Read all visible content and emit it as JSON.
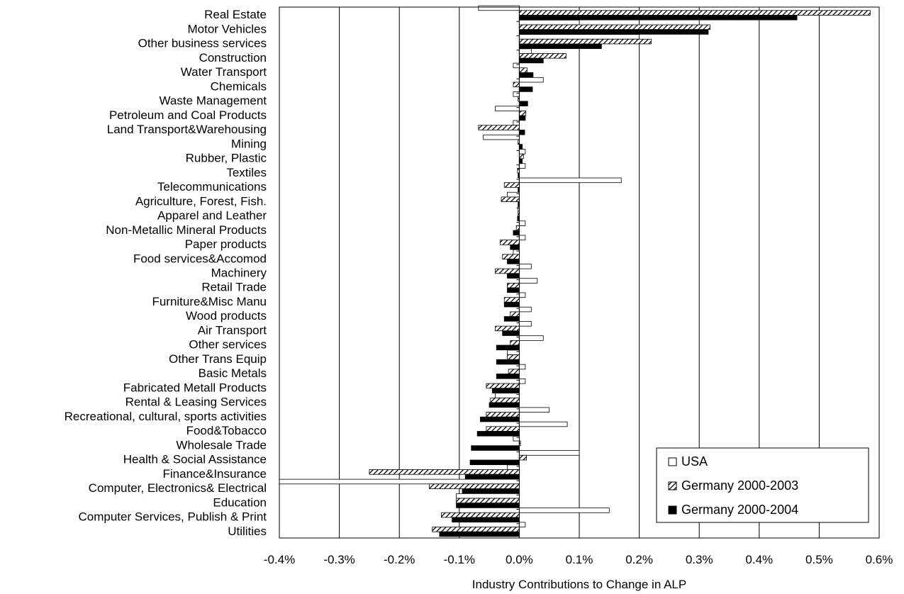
{
  "chart_data": {
    "type": "bar",
    "orientation": "horizontal",
    "title": "",
    "xlabel": "Industry Contributions to Change in ALP",
    "ylabel": "",
    "xlim": [
      -0.4,
      0.6
    ],
    "x_ticks": [
      "-0.4%",
      "-0.3%",
      "-0.2%",
      "-0.1%",
      "0.0%",
      "0.1%",
      "0.2%",
      "0.3%",
      "0.4%",
      "0.5%",
      "0.6%"
    ],
    "x_tick_values": [
      -0.4,
      -0.3,
      -0.2,
      -0.1,
      0.0,
      0.1,
      0.2,
      0.3,
      0.4,
      0.5,
      0.6
    ],
    "unit": "%",
    "grid": "vertical",
    "legend_position": "bottom-right",
    "categories": [
      "Real Estate",
      "Motor Vehicles",
      "Other business services",
      "Construction",
      "Water Transport",
      "Chemicals",
      "Waste Management",
      "Petroleum and Coal Products",
      "Land Transport&Warehousing",
      "Mining",
      "Rubber, Plastic",
      "Textiles",
      "Telecommunications",
      "Agriculture, Forest, Fish.",
      "Apparel and Leather",
      "Non-Metallic Mineral Products",
      "Paper products",
      "Food services&Accomod",
      "Machinery",
      "Retail Trade",
      "Furniture&Misc Manu",
      "Wood products",
      "Air Transport",
      "Other services",
      "Other Trans Equip",
      "Basic Metals",
      "Fabricated Metall Products",
      "Rental & Leasing Services",
      "Recreational, cultural, sports activities",
      "Food&Tobacco",
      "Wholesale Trade",
      "Health & Social Assistance",
      "Finance&Insurance",
      "Computer, Electronics& Electrical",
      "Education",
      "Computer Services, Publish & Print",
      "Utilities"
    ],
    "series": [
      {
        "name": "USA",
        "fill": "white",
        "values": [
          -0.068,
          0.1,
          0.2,
          0.02,
          -0.01,
          0.04,
          -0.01,
          -0.04,
          -0.01,
          -0.06,
          0.01,
          0.01,
          0.17,
          -0.02,
          -0.002,
          0.01,
          0.01,
          -0.01,
          0.02,
          0.03,
          0.01,
          0.02,
          0.02,
          0.04,
          -0.02,
          0.01,
          0.01,
          -0.04,
          0.05,
          0.08,
          -0.01,
          0.1,
          -0.02,
          -0.4,
          -0.105,
          0.15,
          0.01
        ]
      },
      {
        "name": "Germany 2000-2003",
        "fill": "hatch",
        "values": [
          0.585,
          0.318,
          0.22,
          0.078,
          0.013,
          -0.01,
          -0.002,
          0.011,
          -0.068,
          -0.002,
          0.007,
          -0.003,
          -0.025,
          -0.03,
          -0.002,
          -0.005,
          -0.032,
          -0.028,
          -0.04,
          -0.02,
          -0.025,
          -0.015,
          -0.04,
          -0.015,
          -0.02,
          -0.018,
          -0.055,
          -0.048,
          -0.055,
          -0.055,
          0.002,
          0.012,
          -0.25,
          -0.15,
          -0.105,
          -0.13,
          -0.145
        ]
      },
      {
        "name": "Germany 2000-2004",
        "fill": "black",
        "values": [
          0.463,
          0.315,
          0.137,
          0.04,
          0.023,
          0.022,
          0.014,
          0.01,
          0.009,
          0.005,
          0.005,
          -0.002,
          -0.002,
          -0.002,
          -0.003,
          -0.01,
          -0.015,
          -0.02,
          -0.02,
          -0.02,
          -0.025,
          -0.025,
          -0.028,
          -0.038,
          -0.038,
          -0.038,
          -0.045,
          -0.05,
          -0.065,
          -0.07,
          -0.08,
          -0.082,
          -0.09,
          -0.095,
          -0.105,
          -0.112,
          -0.133
        ]
      }
    ]
  }
}
